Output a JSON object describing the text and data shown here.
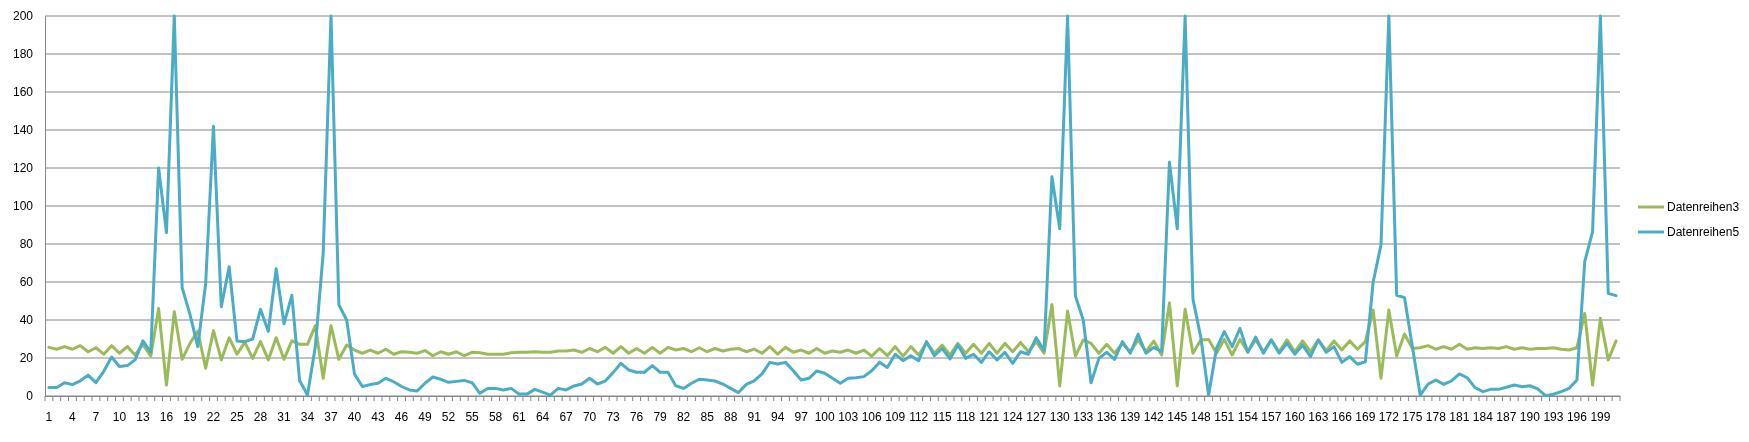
{
  "chart_data": {
    "type": "line",
    "categories": [
      "1",
      null,
      null,
      "4",
      null,
      null,
      "7",
      null,
      null,
      "10",
      null,
      null,
      "13",
      null,
      null,
      "16",
      null,
      null,
      "19",
      null,
      null,
      "22",
      null,
      null,
      "25",
      null,
      null,
      "28",
      null,
      null,
      "31",
      null,
      null,
      "34",
      null,
      null,
      "37",
      null,
      null,
      "40",
      null,
      null,
      "43",
      null,
      null,
      "46",
      null,
      null,
      "49",
      null,
      null,
      "52",
      null,
      null,
      "55",
      null,
      null,
      "58",
      null,
      null,
      "61",
      null,
      null,
      "64",
      null,
      null,
      "67",
      null,
      null,
      "70",
      null,
      null,
      "73",
      null,
      null,
      "76",
      null,
      null,
      "79",
      null,
      null,
      "82",
      null,
      null,
      "85",
      null,
      null,
      "88",
      null,
      null,
      "91",
      null,
      null,
      "94",
      null,
      null,
      "97",
      null,
      null,
      "100",
      null,
      null,
      "103",
      null,
      null,
      "106",
      null,
      null,
      "109",
      null,
      null,
      "112",
      null,
      null,
      "115",
      null,
      null,
      "118",
      null,
      null,
      "121",
      null,
      null,
      "124",
      null,
      null,
      "127",
      null,
      null,
      "130",
      null,
      null,
      "133",
      null,
      null,
      "136",
      null,
      null,
      "139",
      null,
      null,
      "142",
      null,
      null,
      "145",
      null,
      null,
      "148",
      null,
      null,
      "151",
      null,
      null,
      "154",
      null,
      null,
      "157",
      null,
      null,
      "160",
      null,
      null,
      "163",
      null,
      null,
      "166",
      null,
      null,
      "169",
      null,
      null,
      "172",
      null,
      null,
      "175",
      null,
      null,
      "178",
      null,
      null,
      "181",
      null,
      null,
      "184",
      null,
      null,
      "187",
      null,
      null,
      "190",
      null,
      null,
      "193",
      null,
      null,
      "196",
      null,
      null,
      "199",
      null,
      null
    ],
    "series": [
      {
        "name": "Datenreihen3",
        "color": "#9bbb59",
        "values": [
          25.6,
          24.6,
          26,
          24.6,
          26.5,
          23.3,
          25.4,
          22,
          26.5,
          22.5,
          26,
          21.6,
          27.2,
          21,
          46,
          5.8,
          44.4,
          19.3,
          27.7,
          34.2,
          14.6,
          34.4,
          19,
          30.7,
          22,
          28.2,
          19.8,
          28.6,
          19,
          30.7,
          19.3,
          29,
          27.2,
          27.2,
          37,
          9.3,
          37,
          19.3,
          26.8,
          24.2,
          22.5,
          24.2,
          22.5,
          24.6,
          22,
          23.3,
          23,
          22.5,
          23.9,
          21.2,
          23.3,
          22,
          23.3,
          21.2,
          23,
          22.8,
          22,
          22,
          22,
          22.8,
          23,
          23,
          23.3,
          23,
          23,
          23.7,
          23.7,
          24.2,
          23,
          25,
          23.3,
          25.6,
          22.5,
          26,
          22.5,
          25,
          22.5,
          25.6,
          22.5,
          25.6,
          24.2,
          25,
          23.3,
          25.4,
          23.3,
          25,
          23.7,
          24.6,
          25,
          23.3,
          24.7,
          22.5,
          26,
          22,
          25.6,
          23,
          24.2,
          22.5,
          25,
          22.5,
          23.7,
          23,
          24.2,
          22.5,
          24.2,
          21,
          25,
          21.2,
          26,
          21,
          26,
          21.6,
          28.2,
          22.5,
          26.8,
          21.6,
          27.7,
          22.5,
          27.2,
          22.5,
          27.7,
          22.5,
          27.7,
          23.3,
          28.2,
          23.3,
          28.6,
          22.5,
          48.2,
          5.3,
          44.7,
          21,
          29.5,
          27.7,
          22.5,
          27.2,
          22.5,
          27.7,
          23.3,
          29.5,
          23.3,
          28.9,
          21.6,
          49,
          5.3,
          45.6,
          22.5,
          29.5,
          29.8,
          22.5,
          29.8,
          21.6,
          29.8,
          23.3,
          29.5,
          23.3,
          29.5,
          23.3,
          29.5,
          23.3,
          29,
          23.3,
          29.5,
          23.9,
          29,
          24.2,
          29,
          24.6,
          28.6,
          45.3,
          9.3,
          45.3,
          21,
          32.6,
          25,
          25.4,
          26.5,
          24.6,
          26,
          24.6,
          27.2,
          24.6,
          25.4,
          25,
          25.4,
          25,
          26,
          24.6,
          25.4,
          24.6,
          25,
          25,
          25.4,
          24.6,
          24.2,
          25.4,
          43.5,
          5.8,
          40.9,
          19,
          29
        ]
      },
      {
        "name": "Datenreihen5",
        "color": "#4bacc6",
        "values": [
          4.5,
          4.5,
          7,
          6,
          8,
          11,
          7,
          13,
          20.5,
          15.5,
          16,
          19,
          29,
          23,
          120,
          86,
          200,
          57,
          43,
          26,
          59,
          142,
          47,
          68,
          29,
          28.6,
          30,
          45.6,
          34,
          67,
          38,
          53,
          8,
          0.5,
          26,
          75,
          200,
          48,
          40,
          11.5,
          5,
          6,
          6.7,
          9.3,
          7.5,
          5,
          3.2,
          2.6,
          6.7,
          10,
          8.8,
          7.2,
          7.7,
          8.2,
          7,
          1.4,
          4,
          4,
          3.2,
          4,
          1,
          1,
          3.5,
          2,
          0.5,
          4,
          3.2,
          5.3,
          6.3,
          9.3,
          6.3,
          7.9,
          12.3,
          17.2,
          13.7,
          12.5,
          12.5,
          16,
          12.5,
          12.5,
          5.4,
          4,
          6.7,
          8.8,
          8.4,
          7.9,
          6.3,
          4,
          1.8,
          6.1,
          7.9,
          11.6,
          17.7,
          16.8,
          17.7,
          13.3,
          8.4,
          9.3,
          13.2,
          12,
          9.3,
          6.7,
          9.3,
          9.6,
          10.2,
          13.3,
          17.7,
          15,
          22,
          18.6,
          21.2,
          18.6,
          28.6,
          21.2,
          25,
          19.5,
          26.8,
          19.8,
          22,
          17.7,
          23.3,
          19,
          23,
          17.2,
          23.3,
          22,
          30.7,
          23.9,
          115.4,
          88,
          200,
          52.6,
          40,
          7,
          19.8,
          23,
          19.3,
          28.6,
          22.5,
          32.5,
          22.5,
          25.6,
          23.3,
          123,
          88,
          200,
          51,
          31,
          0.5,
          25,
          33.9,
          26,
          35.6,
          23,
          31,
          22.5,
          29.5,
          22.5,
          27.7,
          22,
          26.8,
          20.7,
          29.5,
          23,
          26,
          17.7,
          20.7,
          16.7,
          18,
          60,
          79.5,
          200,
          53,
          51.8,
          26,
          0.5,
          6.3,
          8.4,
          6.1,
          8,
          11.6,
          9.6,
          4.4,
          2.3,
          3.5,
          3.5,
          4.6,
          5.8,
          4.9,
          5.4,
          3.7,
          0.2,
          0.9,
          2.3,
          4,
          8.4,
          70.7,
          86.5,
          200,
          54,
          52.8
        ]
      }
    ],
    "ylim": [
      0,
      200
    ],
    "yticks": [
      0,
      20,
      40,
      60,
      80,
      100,
      120,
      140,
      160,
      180,
      200
    ],
    "grid": "y",
    "legend": "right",
    "marker": "none",
    "line_style": "solid"
  }
}
